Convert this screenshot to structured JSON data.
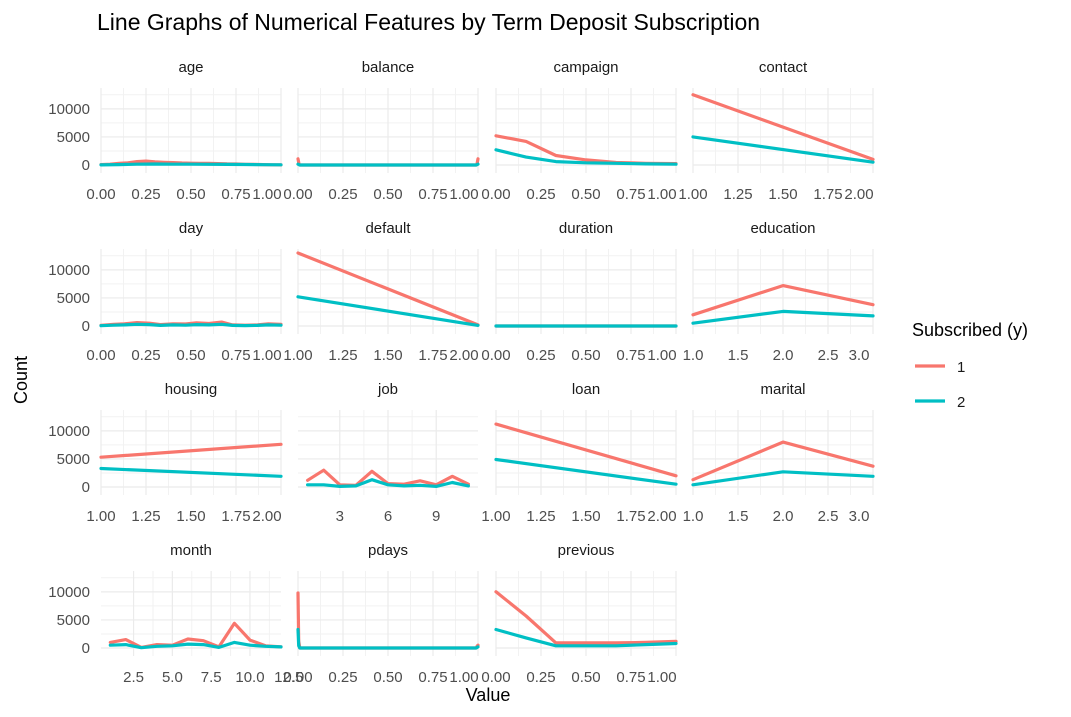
{
  "chart_data": {
    "type": "line",
    "title": "Line Graphs of Numerical Features by Term Deposit Subscription",
    "xlabel": "Value",
    "ylabel": "Count",
    "grid": true,
    "facet_layout": "4 columns x 4 rows, free x scales, shared y scale",
    "shared_y": {
      "lim": [
        0,
        13000
      ],
      "ticks": [
        0,
        5000,
        10000
      ],
      "tick_labels": [
        "0",
        "5000",
        "10000"
      ]
    },
    "legend": {
      "title": "Subscribed (y)",
      "placement": "right",
      "entries": [
        {
          "name": "1",
          "color": "#F8766D"
        },
        {
          "name": "2",
          "color": "#00BFC4"
        }
      ]
    },
    "series_colors": {
      "1": "#F8766D",
      "2": "#00BFC4"
    },
    "facets": [
      {
        "name": "age",
        "xlim": [
          0,
          1
        ],
        "xticks": [
          0,
          0.25,
          0.5,
          0.75,
          1
        ],
        "xtick_labels": [
          "0.00",
          "0.25",
          "0.50",
          "0.75",
          "1.00"
        ],
        "series": [
          {
            "name": "1",
            "x": [
              0,
              0.05,
              0.1,
              0.15,
              0.2,
              0.25,
              0.3,
              0.35,
              0.4,
              0.45,
              0.5,
              0.55,
              0.6,
              0.65,
              0.7,
              0.75,
              0.8,
              0.85,
              0.9,
              0.95,
              1
            ],
            "y": [
              80,
              150,
              280,
              400,
              600,
              700,
              560,
              480,
              420,
              360,
              320,
              300,
              280,
              250,
              200,
              170,
              130,
              100,
              70,
              40,
              20
            ]
          },
          {
            "name": "2",
            "x": [
              0,
              0.1,
              0.2,
              0.3,
              0.4,
              0.5,
              0.6,
              0.7,
              0.8,
              0.9,
              1
            ],
            "y": [
              20,
              80,
              150,
              170,
              150,
              140,
              130,
              110,
              90,
              60,
              30
            ]
          }
        ]
      },
      {
        "name": "balance",
        "xlim": [
          0,
          1
        ],
        "xticks": [
          0,
          0.25,
          0.5,
          0.75,
          1
        ],
        "xtick_labels": [
          "0.00",
          "0.25",
          "0.50",
          "0.75",
          "1.00"
        ],
        "series": [
          {
            "name": "1",
            "x": [
              0,
              0.005,
              0.01,
              0.99,
              0.995,
              1
            ],
            "y": [
              1100,
              250,
              0,
              0,
              250,
              1100
            ]
          },
          {
            "name": "2",
            "x": [
              0,
              0.01,
              0.99,
              1
            ],
            "y": [
              150,
              0,
              0,
              150
            ]
          }
        ]
      },
      {
        "name": "campaign",
        "xlim": [
          0,
          1
        ],
        "xticks": [
          0,
          0.25,
          0.5,
          0.75,
          1
        ],
        "xtick_labels": [
          "0.00",
          "0.25",
          "0.50",
          "0.75",
          "1.00"
        ],
        "series": [
          {
            "name": "1",
            "x": [
              0,
              0.167,
              0.333,
              0.5,
              0.667,
              0.833,
              1
            ],
            "y": [
              5200,
              4200,
              1700,
              900,
              450,
              300,
              250
            ]
          },
          {
            "name": "2",
            "x": [
              0,
              0.167,
              0.333,
              0.5,
              0.667,
              0.833,
              1
            ],
            "y": [
              2700,
              1400,
              600,
              400,
              300,
              200,
              150
            ]
          }
        ]
      },
      {
        "name": "contact",
        "xlim": [
          1,
          2
        ],
        "xticks": [
          1,
          1.25,
          1.5,
          1.75,
          2
        ],
        "xtick_labels": [
          "1.00",
          "1.25",
          "1.50",
          "1.75",
          "2.00"
        ],
        "series": [
          {
            "name": "1",
            "x": [
              1,
              2
            ],
            "y": [
              12500,
              1000
            ]
          },
          {
            "name": "2",
            "x": [
              1,
              2
            ],
            "y": [
              5000,
              500
            ]
          }
        ]
      },
      {
        "name": "day",
        "xlim": [
          0,
          1
        ],
        "xticks": [
          0,
          0.25,
          0.5,
          0.75,
          1
        ],
        "xtick_labels": [
          "0.00",
          "0.25",
          "0.50",
          "0.75",
          "1.00"
        ],
        "series": [
          {
            "name": "1",
            "x": [
              0,
              0.07,
              0.13,
              0.2,
              0.27,
              0.33,
              0.4,
              0.47,
              0.53,
              0.6,
              0.67,
              0.73,
              0.8,
              0.87,
              0.93,
              1
            ],
            "y": [
              100,
              300,
              400,
              600,
              500,
              250,
              400,
              350,
              550,
              450,
              700,
              200,
              150,
              200,
              400,
              300
            ]
          },
          {
            "name": "2",
            "x": [
              0,
              0.07,
              0.13,
              0.2,
              0.27,
              0.33,
              0.4,
              0.47,
              0.53,
              0.6,
              0.67,
              0.73,
              0.8,
              0.87,
              0.93,
              1
            ],
            "y": [
              50,
              150,
              200,
              300,
              250,
              100,
              200,
              150,
              250,
              200,
              300,
              100,
              80,
              100,
              200,
              150
            ]
          }
        ]
      },
      {
        "name": "default",
        "xlim": [
          1,
          2
        ],
        "xticks": [
          1,
          1.25,
          1.5,
          1.75,
          2
        ],
        "xtick_labels": [
          "1.00",
          "1.25",
          "1.50",
          "1.75",
          "2.00"
        ],
        "series": [
          {
            "name": "1",
            "x": [
              1,
              2
            ],
            "y": [
              13000,
              200
            ]
          },
          {
            "name": "2",
            "x": [
              1,
              2
            ],
            "y": [
              5200,
              100
            ]
          }
        ]
      },
      {
        "name": "duration",
        "xlim": [
          0,
          1
        ],
        "xticks": [
          0,
          0.25,
          0.5,
          0.75,
          1
        ],
        "xtick_labels": [
          "0.00",
          "0.25",
          "0.50",
          "0.75",
          "1.00"
        ],
        "series": [
          {
            "name": "1",
            "x": [
              0,
              1
            ],
            "y": [
              0,
              0
            ]
          },
          {
            "name": "2",
            "x": [
              0,
              1
            ],
            "y": [
              0,
              0
            ]
          }
        ]
      },
      {
        "name": "education",
        "xlim": [
          1,
          3
        ],
        "xticks": [
          1,
          1.5,
          2,
          2.5,
          3
        ],
        "xtick_labels": [
          "1.0",
          "1.5",
          "2.0",
          "2.5",
          "3.0"
        ],
        "series": [
          {
            "name": "1",
            "x": [
              1,
              2,
              3
            ],
            "y": [
              2000,
              7200,
              3800
            ]
          },
          {
            "name": "2",
            "x": [
              1,
              2,
              3
            ],
            "y": [
              500,
              2600,
              1800
            ]
          }
        ]
      },
      {
        "name": "housing",
        "xlim": [
          1,
          2
        ],
        "xticks": [
          1,
          1.25,
          1.5,
          1.75,
          2
        ],
        "xtick_labels": [
          "1.00",
          "1.25",
          "1.50",
          "1.75",
          "2.00"
        ],
        "series": [
          {
            "name": "1",
            "x": [
              1,
              2
            ],
            "y": [
              5300,
              7600
            ]
          },
          {
            "name": "2",
            "x": [
              1,
              2
            ],
            "y": [
              3300,
              1900
            ]
          }
        ]
      },
      {
        "name": "job",
        "xlim": [
          0.4,
          11.6
        ],
        "xticks": [
          3,
          6,
          9
        ],
        "xtick_labels": [
          "3",
          "6",
          "9"
        ],
        "series": [
          {
            "name": "1",
            "x": [
              1,
              2,
              3,
              4,
              5,
              6,
              7,
              8,
              9,
              10,
              11
            ],
            "y": [
              1200,
              3000,
              400,
              300,
              2800,
              600,
              500,
              1100,
              400,
              1900,
              500
            ]
          },
          {
            "name": "2",
            "x": [
              1,
              2,
              3,
              4,
              5,
              6,
              7,
              8,
              9,
              10,
              11
            ],
            "y": [
              400,
              400,
              100,
              200,
              1300,
              400,
              200,
              300,
              100,
              800,
              200
            ]
          }
        ]
      },
      {
        "name": "loan",
        "xlim": [
          1,
          2
        ],
        "xticks": [
          1,
          1.25,
          1.5,
          1.75,
          2
        ],
        "xtick_labels": [
          "1.00",
          "1.25",
          "1.50",
          "1.75",
          "2.00"
        ],
        "series": [
          {
            "name": "1",
            "x": [
              1,
              2
            ],
            "y": [
              11200,
              2000
            ]
          },
          {
            "name": "2",
            "x": [
              1,
              2
            ],
            "y": [
              4900,
              500
            ]
          }
        ]
      },
      {
        "name": "marital",
        "xlim": [
          1,
          3
        ],
        "xticks": [
          1,
          1.5,
          2,
          2.5,
          3
        ],
        "xtick_labels": [
          "1.0",
          "1.5",
          "2.0",
          "2.5",
          "3.0"
        ],
        "series": [
          {
            "name": "1",
            "x": [
              1,
              2,
              3
            ],
            "y": [
              1300,
              8000,
              3700
            ]
          },
          {
            "name": "2",
            "x": [
              1,
              2,
              3
            ],
            "y": [
              400,
              2700,
              1900
            ]
          }
        ]
      },
      {
        "name": "month",
        "xlim": [
          0.4,
          12
        ],
        "xticks": [
          2.5,
          5,
          7.5,
          10,
          12.5
        ],
        "xtick_labels": [
          "2.5",
          "5.0",
          "7.5",
          "10.0",
          "12.5"
        ],
        "series": [
          {
            "name": "1",
            "x": [
              1,
              2,
              3,
              4,
              5,
              6,
              7,
              8,
              9,
              10,
              11,
              12
            ],
            "y": [
              1000,
              1500,
              100,
              600,
              500,
              1600,
              1300,
              200,
              4400,
              1400,
              400,
              200
            ]
          },
          {
            "name": "2",
            "x": [
              1,
              2,
              3,
              4,
              5,
              6,
              7,
              8,
              9,
              10,
              11,
              12
            ],
            "y": [
              500,
              600,
              50,
              300,
              400,
              700,
              600,
              100,
              1000,
              500,
              300,
              200
            ]
          }
        ]
      },
      {
        "name": "pdays",
        "xlim": [
          0,
          1
        ],
        "xticks": [
          0,
          0.25,
          0.5,
          0.75,
          1
        ],
        "xtick_labels": [
          "0.00",
          "0.25",
          "0.50",
          "0.75",
          "1.00"
        ],
        "series": [
          {
            "name": "1",
            "x": [
              0,
              0.004,
              0.01,
              0.99,
              0.996,
              1
            ],
            "y": [
              9800,
              1200,
              0,
              0,
              400,
              500
            ]
          },
          {
            "name": "2",
            "x": [
              0,
              0.004,
              0.01,
              0.99,
              1
            ],
            "y": [
              3300,
              400,
              0,
              0,
              200
            ]
          }
        ]
      },
      {
        "name": "previous",
        "xlim": [
          0,
          1
        ],
        "xticks": [
          0,
          0.25,
          0.5,
          0.75,
          1
        ],
        "xtick_labels": [
          "0.00",
          "0.25",
          "0.50",
          "0.75",
          "1.00"
        ],
        "series": [
          {
            "name": "1",
            "x": [
              0,
              0.167,
              0.333,
              0.5,
              0.667,
              0.833,
              1
            ],
            "y": [
              10000,
              5700,
              900,
              900,
              900,
              1000,
              1200
            ]
          },
          {
            "name": "2",
            "x": [
              0,
              0.167,
              0.333,
              0.5,
              0.667,
              0.833,
              1
            ],
            "y": [
              3300,
              1800,
              400,
              400,
              400,
              600,
              800
            ]
          }
        ]
      }
    ]
  }
}
